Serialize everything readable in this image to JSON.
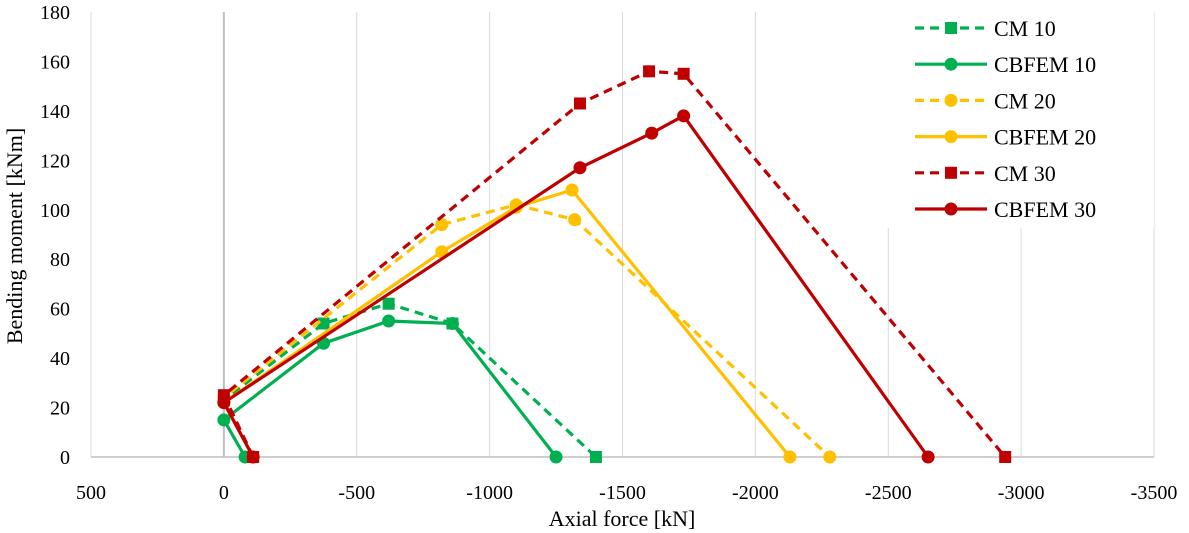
{
  "chart_data": {
    "type": "line",
    "title": "",
    "xlabel": "Axial force [kN]",
    "ylabel": "Bending moment [kNm]",
    "xlim": [
      500,
      -3500
    ],
    "ylim": [
      0,
      180
    ],
    "x_ticks": [
      500,
      0,
      -500,
      -1000,
      -1500,
      -2000,
      -2500,
      -3000,
      -3500
    ],
    "y_ticks": [
      0,
      20,
      40,
      60,
      80,
      100,
      120,
      140,
      160,
      180
    ],
    "x_tick_labels": [
      "500",
      "0",
      "-500",
      "-1000",
      "-1500",
      "-2000",
      "-2500",
      "-3000",
      "-3500"
    ],
    "y_tick_labels": [
      "0",
      "20",
      "40",
      "60",
      "80",
      "100",
      "120",
      "140",
      "160",
      "180"
    ],
    "grid": "vertical",
    "legend_position": "top-right",
    "series": [
      {
        "name": "CM 10",
        "color": "#00b050",
        "dash": "dashed",
        "marker": "square",
        "points": [
          [
            -110,
            0
          ],
          [
            0,
            23
          ],
          [
            -375,
            54
          ],
          [
            -620,
            62
          ],
          [
            -860,
            54
          ],
          [
            -1400,
            0
          ]
        ]
      },
      {
        "name": "CBFEM 10",
        "color": "#00b050",
        "dash": "solid",
        "marker": "circle",
        "points": [
          [
            -80,
            0
          ],
          [
            0,
            15
          ],
          [
            -375,
            46
          ],
          [
            -620,
            55
          ],
          [
            -860,
            54
          ],
          [
            -1250,
            0
          ]
        ]
      },
      {
        "name": "CM 20",
        "color": "#ffc000",
        "dash": "dashed",
        "marker": "circle",
        "points": [
          [
            -110,
            0
          ],
          [
            0,
            24
          ],
          [
            -820,
            94
          ],
          [
            -1100,
            102
          ],
          [
            -1320,
            96
          ],
          [
            -2280,
            0
          ]
        ]
      },
      {
        "name": "CBFEM 20",
        "color": "#ffc000",
        "dash": "solid",
        "marker": "circle",
        "points": [
          [
            -110,
            0
          ],
          [
            0,
            22
          ],
          [
            -820,
            83
          ],
          [
            -1100,
            101
          ],
          [
            -1310,
            108
          ],
          [
            -2130,
            0
          ]
        ]
      },
      {
        "name": "CM 30",
        "color": "#c00000",
        "dash": "dashed",
        "marker": "square",
        "points": [
          [
            -110,
            0
          ],
          [
            0,
            25
          ],
          [
            -1340,
            143
          ],
          [
            -1600,
            156
          ],
          [
            -1730,
            155
          ],
          [
            -2940,
            0
          ]
        ]
      },
      {
        "name": "CBFEM 30",
        "color": "#c00000",
        "dash": "solid",
        "marker": "circle",
        "points": [
          [
            -110,
            0
          ],
          [
            0,
            22
          ],
          [
            -1340,
            117
          ],
          [
            -1610,
            131
          ],
          [
            -1730,
            138
          ],
          [
            -2650,
            0
          ]
        ]
      }
    ]
  }
}
